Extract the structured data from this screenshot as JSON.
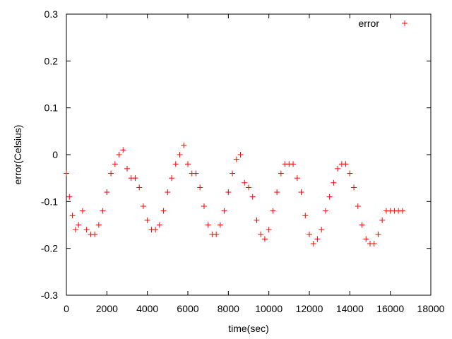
{
  "chart_data": {
    "type": "scatter",
    "xlabel": "time(sec)",
    "ylabel": "error(Celsius)",
    "xlim": [
      0,
      18000
    ],
    "ylim": [
      -0.3,
      0.3
    ],
    "xticks": [
      "0",
      "2000",
      "4000",
      "6000",
      "8000",
      "10000",
      "12000",
      "14000",
      "16000",
      "18000"
    ],
    "yticks": [
      "0.3",
      "0.2",
      "0.1",
      "0",
      "-0.1",
      "-0.2",
      "-0.3"
    ],
    "grid": false,
    "legend": "top-right",
    "series": [
      {
        "name": "error",
        "marker": "+",
        "color": "#ff0000",
        "x": [
          0,
          150,
          300,
          450,
          600,
          800,
          1000,
          1200,
          1400,
          1600,
          1800,
          2000,
          2200,
          2400,
          2600,
          2800,
          3000,
          3200,
          3400,
          3600,
          3800,
          4000,
          4200,
          4400,
          4600,
          4800,
          5000,
          5200,
          5400,
          5600,
          5800,
          6000,
          6200,
          6400,
          6600,
          6800,
          7000,
          7200,
          7400,
          7600,
          7800,
          8000,
          8200,
          8400,
          8600,
          8800,
          9000,
          9200,
          9400,
          9600,
          9800,
          10000,
          10200,
          10400,
          10600,
          10800,
          11000,
          11200,
          11400,
          11600,
          11800,
          12000,
          12200,
          12400,
          12600,
          12800,
          13000,
          13200,
          13400,
          13600,
          13800,
          14000,
          14200,
          14400,
          14600,
          14800,
          15000,
          15200,
          15400,
          15600,
          15800,
          16000,
          16200,
          16400,
          16600
        ],
        "y": [
          -0.04,
          -0.09,
          -0.13,
          -0.16,
          -0.15,
          -0.12,
          -0.16,
          -0.17,
          -0.17,
          -0.15,
          -0.12,
          -0.08,
          -0.04,
          -0.02,
          0.0,
          0.01,
          -0.03,
          -0.05,
          -0.05,
          -0.07,
          -0.11,
          -0.14,
          -0.16,
          -0.16,
          -0.15,
          -0.12,
          -0.08,
          -0.05,
          -0.02,
          0.0,
          0.02,
          -0.02,
          -0.04,
          -0.04,
          -0.07,
          -0.11,
          -0.15,
          -0.17,
          -0.17,
          -0.15,
          -0.12,
          -0.08,
          -0.04,
          -0.01,
          0.0,
          -0.06,
          -0.07,
          -0.09,
          -0.14,
          -0.17,
          -0.18,
          -0.16,
          -0.12,
          -0.08,
          -0.04,
          -0.02,
          -0.02,
          -0.02,
          -0.05,
          -0.08,
          -0.13,
          -0.17,
          -0.19,
          -0.18,
          -0.16,
          -0.12,
          -0.09,
          -0.06,
          -0.03,
          -0.02,
          -0.02,
          -0.04,
          -0.07,
          -0.11,
          -0.15,
          -0.18,
          -0.19,
          -0.19,
          -0.17,
          -0.14,
          -0.12,
          -0.12,
          -0.12,
          -0.12,
          -0.12
        ]
      }
    ]
  }
}
